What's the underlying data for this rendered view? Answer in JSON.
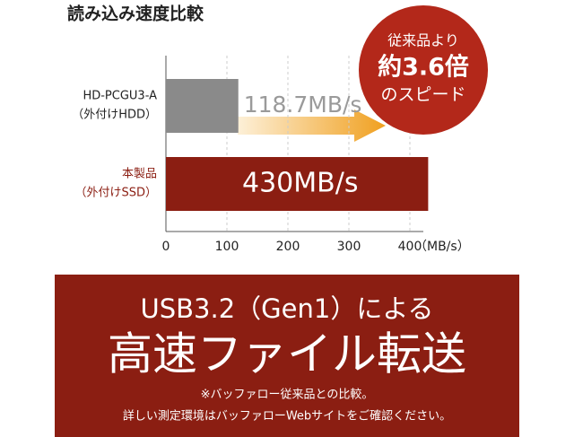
{
  "chart_data": {
    "type": "bar",
    "orientation": "horizontal",
    "title": "読み込み速度比較",
    "categories": [
      "HD-PCGU3-A",
      "本製品"
    ],
    "category_notes": [
      "（外付けHDD）",
      "（外付けSSD）"
    ],
    "category_colors": [
      "#222222",
      "#8b1e12"
    ],
    "values": [
      118.7,
      430
    ],
    "value_labels": [
      "118.7MB/s",
      "430MB/s"
    ],
    "colors": [
      "#8a8a8a",
      "#8b1e12"
    ],
    "value_label_colors": [
      "#9a9a9a",
      "#ffffff"
    ],
    "xlim": [
      0,
      400
    ],
    "xticks": [
      0,
      100,
      200,
      300,
      400
    ],
    "x_unit": "（MB/s）",
    "grid": true
  },
  "callout": {
    "lines": [
      "従来品より",
      "約3.6倍",
      "のスピード"
    ]
  },
  "banner": {
    "headline": "USB3.2（Gen1）による",
    "title": "高速ファイル転送",
    "notes": [
      "※バッファロー従来品との比較。",
      "詳しい測定環境はバッファローWebサイトをご確認ください。"
    ]
  }
}
